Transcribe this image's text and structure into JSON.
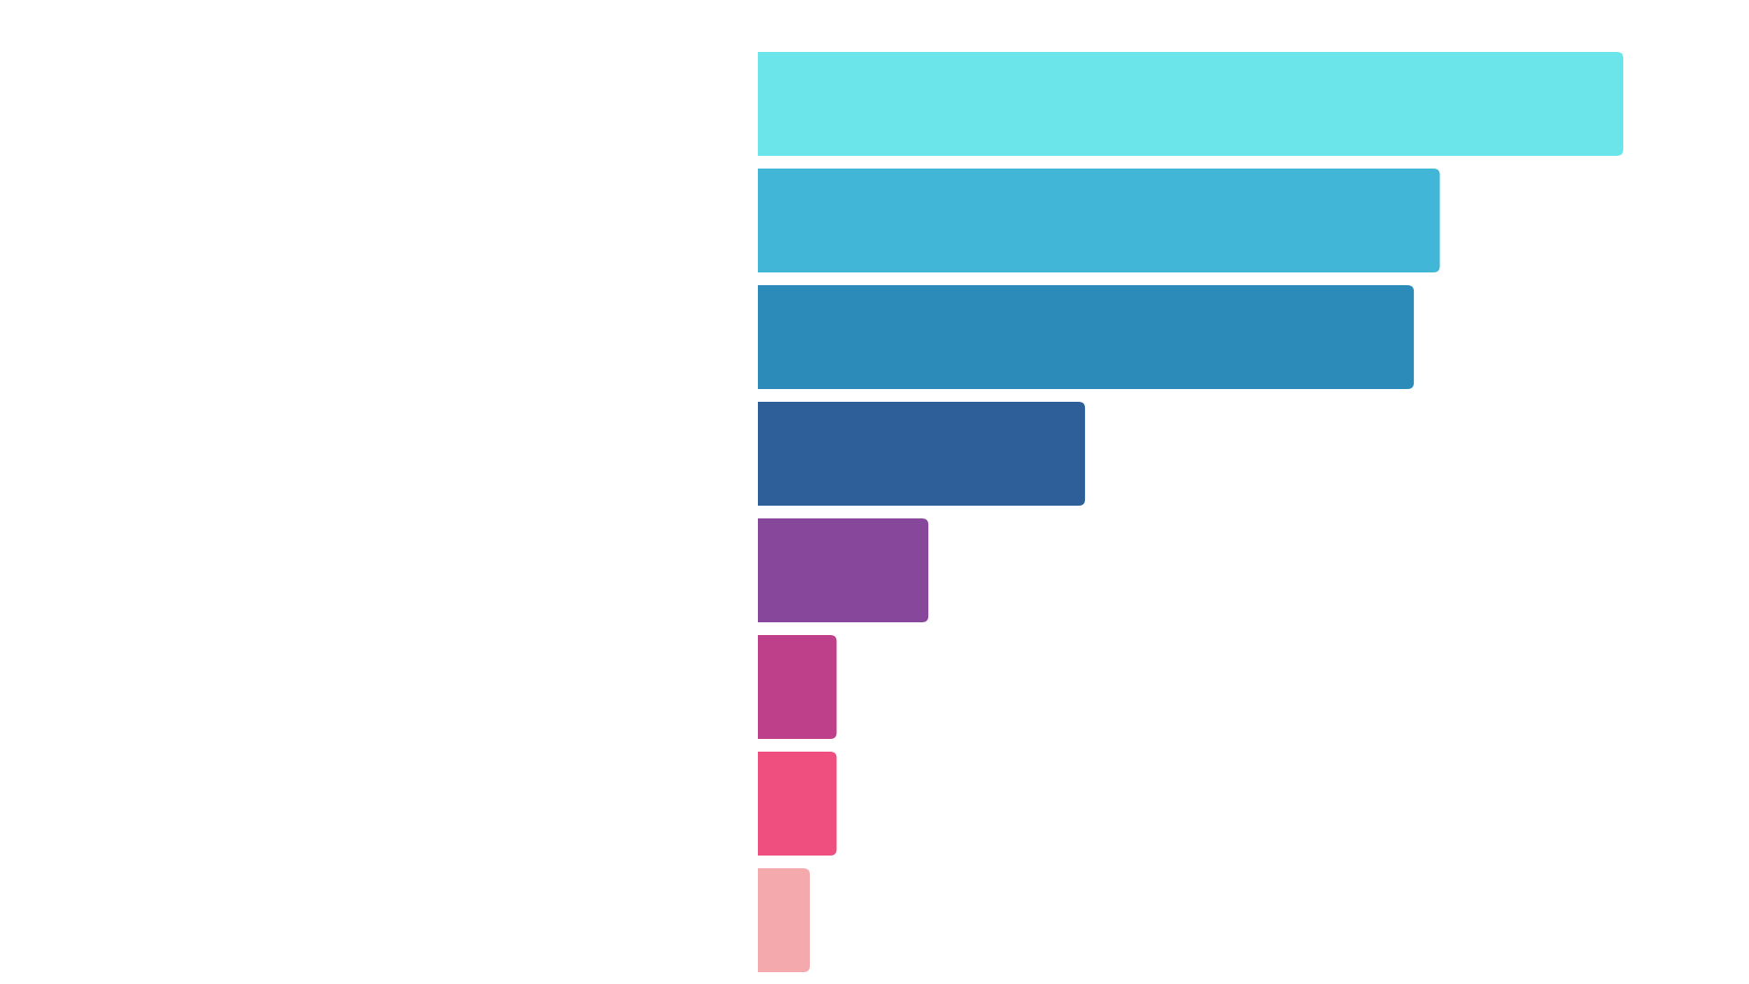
{
  "chart_data": {
    "type": "bar",
    "orientation": "horizontal",
    "title": "",
    "xlabel": "",
    "ylabel": "",
    "grid": false,
    "xlim": [
      0,
      100
    ],
    "values": [
      100,
      78.8,
      75.8,
      37.8,
      19.7,
      9.1,
      9.1,
      6.0
    ],
    "colors": [
      "#6BE5E9",
      "#42B6D6",
      "#2D8BBA",
      "#2E5F98",
      "#87479A",
      "#BE408B",
      "#EF4F7F",
      "#F4A9AC"
    ]
  }
}
